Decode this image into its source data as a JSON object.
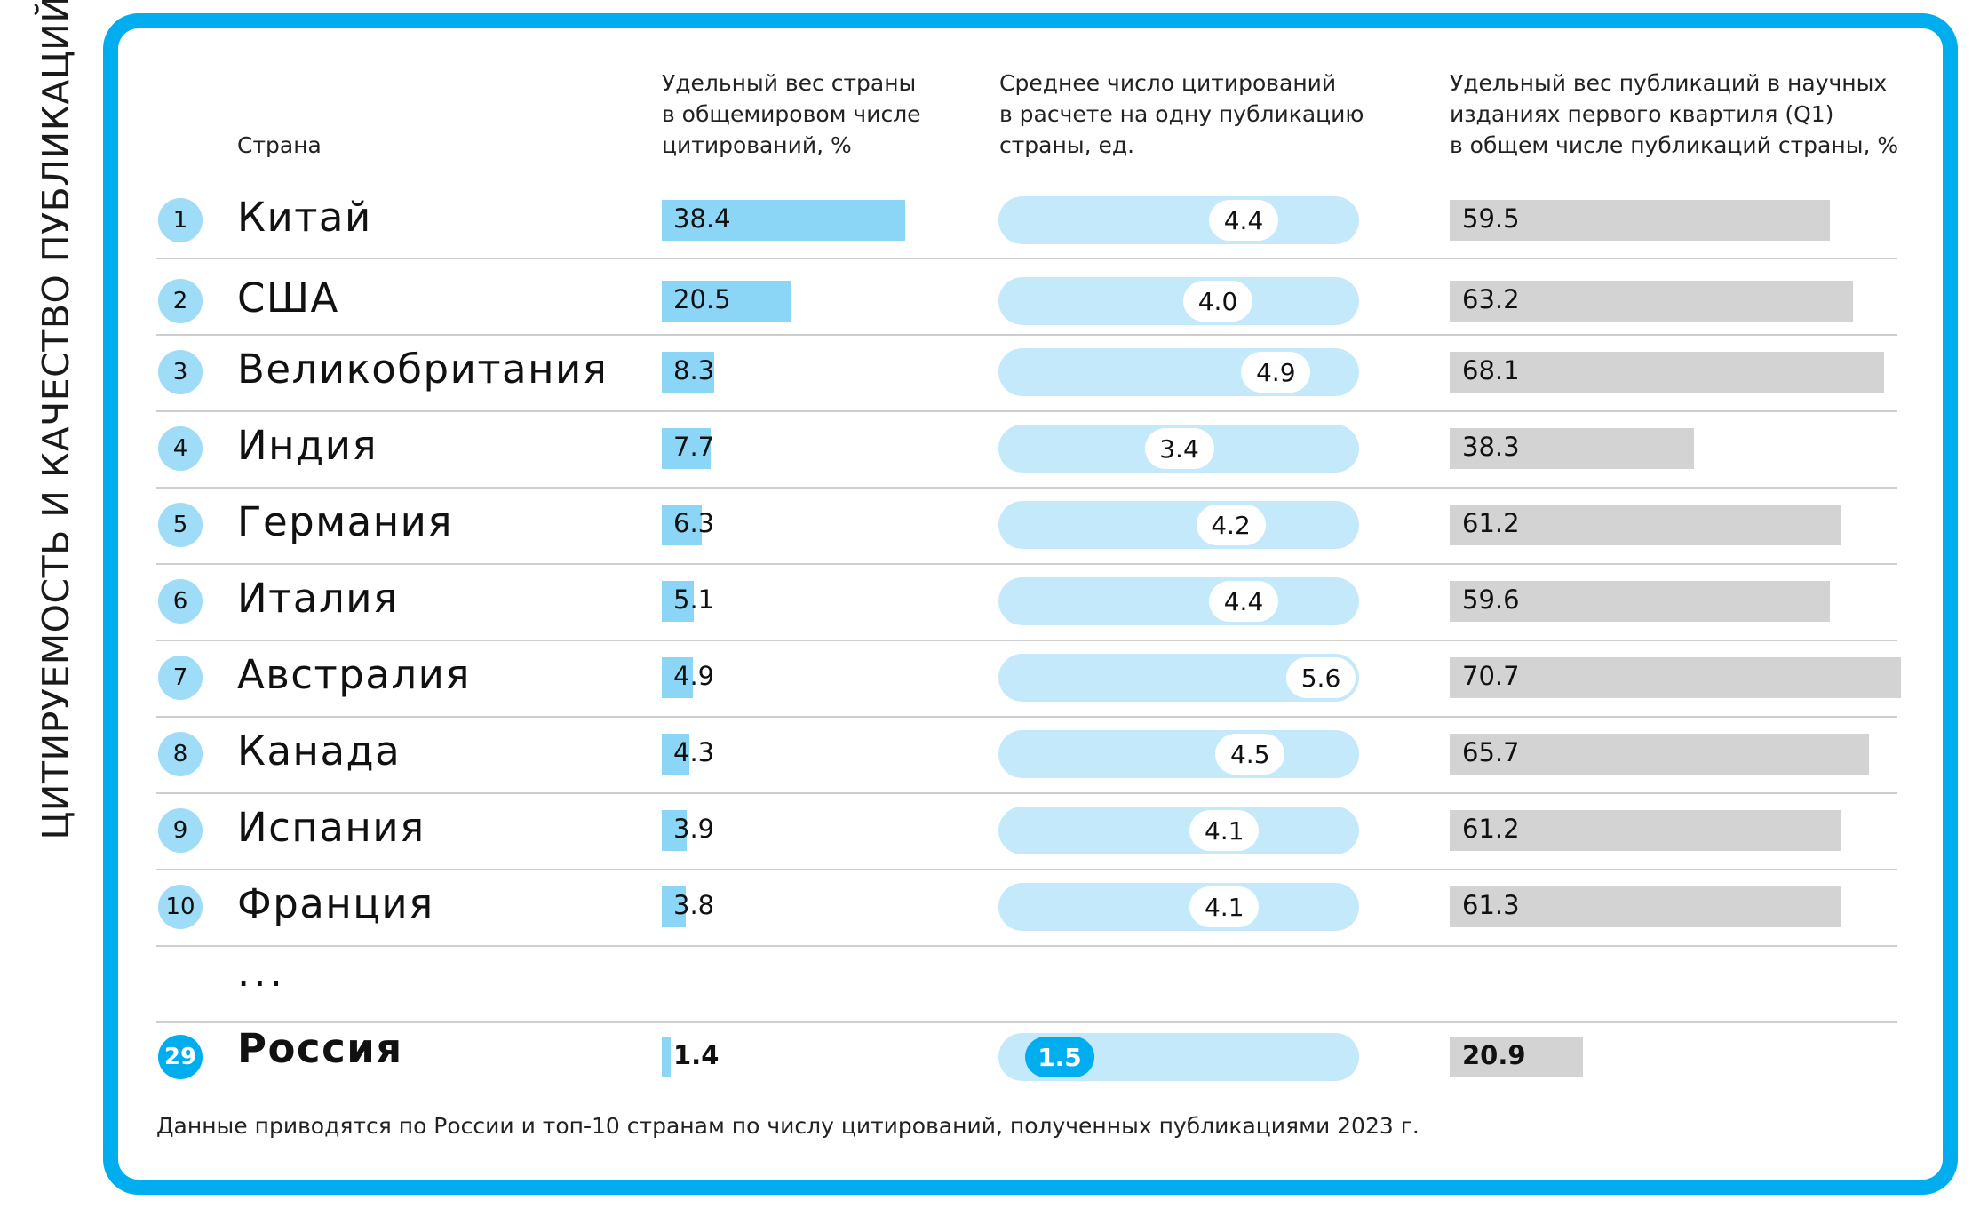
{
  "side_title": "ЦИТИРУЕМОСТЬ И КАЧЕСТВО ПУБЛИКАЦИЙ",
  "headers": {
    "country": "Страна",
    "col1": [
      "Удельный вес страны",
      "в общемировом числе",
      "цитирований, %"
    ],
    "col2": [
      "Среднее число цитирований",
      "в расчете на одну публикацию",
      "страны, ед."
    ],
    "col3": [
      "Удельный вес публикаций в научных",
      "изданиях первого квартиля (Q1)",
      "в общем числе публикаций страны, %"
    ]
  },
  "ellipsis": "...",
  "footnote": "Данные приводятся по России и топ-10 странам по числу цитирований, полученных публикациями 2023 г.",
  "colors": {
    "frame": "#00aeef",
    "share_bar": "#8bd6f7",
    "pill": "#c4e9fb",
    "q1_bar": "#d3d3d4",
    "russia_accent": "#00aeef"
  },
  "chart_data": {
    "type": "table",
    "scales": {
      "col1_max": 38.4,
      "col2_max": 5.6,
      "col3_max": 70.7
    },
    "rows": [
      {
        "rank": "1",
        "country": "Китай",
        "share": 38.4,
        "share_label": "38.4",
        "avg": 4.4,
        "avg_label": "4.4",
        "q1": 59.5,
        "q1_label": "59.5"
      },
      {
        "rank": "2",
        "country": "США",
        "share": 20.5,
        "share_label": "20.5",
        "avg": 4.0,
        "avg_label": "4.0",
        "q1": 63.2,
        "q1_label": "63.2"
      },
      {
        "rank": "3",
        "country": "Великобритания",
        "share": 8.3,
        "share_label": "8.3",
        "avg": 4.9,
        "avg_label": "4.9",
        "q1": 68.1,
        "q1_label": "68.1"
      },
      {
        "rank": "4",
        "country": "Индия",
        "share": 7.7,
        "share_label": "7.7",
        "avg": 3.4,
        "avg_label": "3.4",
        "q1": 38.3,
        "q1_label": "38.3"
      },
      {
        "rank": "5",
        "country": "Германия",
        "share": 6.3,
        "share_label": "6.3",
        "avg": 4.2,
        "avg_label": "4.2",
        "q1": 61.2,
        "q1_label": "61.2"
      },
      {
        "rank": "6",
        "country": "Италия",
        "share": 5.1,
        "share_label": "5.1",
        "avg": 4.4,
        "avg_label": "4.4",
        "q1": 59.6,
        "q1_label": "59.6"
      },
      {
        "rank": "7",
        "country": "Австралия",
        "share": 4.9,
        "share_label": "4.9",
        "avg": 5.6,
        "avg_label": "5.6",
        "q1": 70.7,
        "q1_label": "70.7"
      },
      {
        "rank": "8",
        "country": "Канада",
        "share": 4.3,
        "share_label": "4.3",
        "avg": 4.5,
        "avg_label": "4.5",
        "q1": 65.7,
        "q1_label": "65.7"
      },
      {
        "rank": "9",
        "country": "Испания",
        "share": 3.9,
        "share_label": "3.9",
        "avg": 4.1,
        "avg_label": "4.1",
        "q1": 61.2,
        "q1_label": "61.2"
      },
      {
        "rank": "10",
        "country": "Франция",
        "share": 3.8,
        "share_label": "3.8",
        "avg": 4.1,
        "avg_label": "4.1",
        "q1": 61.3,
        "q1_label": "61.3"
      },
      {
        "rank": "29",
        "country": "Россия",
        "share": 1.4,
        "share_label": "1.4",
        "avg": 1.5,
        "avg_label": "1.5",
        "q1": 20.9,
        "q1_label": "20.9",
        "highlight": true
      }
    ]
  }
}
